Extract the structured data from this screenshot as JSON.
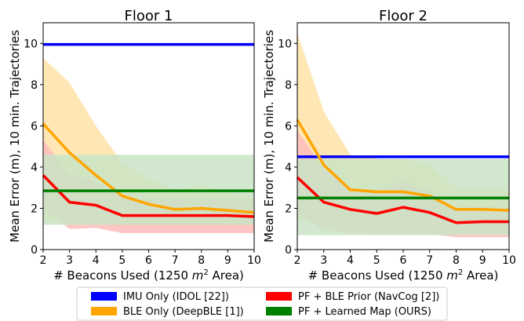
{
  "chart_data": [
    {
      "type": "line",
      "title": "Floor 1",
      "xlabel": "# Beacons Used (1250 m² Area)",
      "xlabel_parts": [
        "# Beacons Used (1250 ",
        "m",
        "2",
        " Area)"
      ],
      "ylabel": "Mean Error (m), 10 min. Trajectories",
      "xlim": [
        2,
        10
      ],
      "ylim": [
        0,
        11
      ],
      "xticks": [
        "2",
        "3",
        "4",
        "5",
        "6",
        "7",
        "8",
        "9",
        "10"
      ],
      "yticks": [
        "0",
        "2",
        "4",
        "6",
        "8",
        "10"
      ],
      "x": [
        2,
        3,
        4,
        5,
        6,
        7,
        8,
        9,
        10
      ],
      "series": [
        {
          "name": "IMU Only (IDOL [22])",
          "color": "#0000ff",
          "values": [
            9.95,
            9.95,
            9.95,
            9.95,
            9.95,
            9.95,
            9.95,
            9.95,
            9.95
          ]
        },
        {
          "name": "BLE Only (DeepBLE [1])",
          "color": "#ffa500",
          "band_color": "#ffe3a8",
          "values": [
            6.1,
            4.7,
            3.6,
            2.6,
            2.2,
            1.95,
            2.0,
            1.9,
            1.8
          ],
          "lower": [
            1.4,
            1.3,
            1.3,
            1.1,
            1.1,
            1.1,
            1.1,
            1.1,
            1.1
          ],
          "upper": [
            9.3,
            8.1,
            6.0,
            4.2,
            3.4,
            2.9,
            3.1,
            2.8,
            2.5
          ]
        },
        {
          "name": "PF + BLE Prior (NavCog [2])",
          "color": "#ff0000",
          "band_color": "#ffbcbc",
          "values": [
            3.6,
            2.3,
            2.15,
            1.65,
            1.65,
            1.65,
            1.65,
            1.65,
            1.6
          ],
          "lower": [
            2.0,
            1.0,
            1.05,
            0.8,
            0.8,
            0.8,
            0.8,
            0.8,
            0.8
          ],
          "upper": [
            5.3,
            3.7,
            3.3,
            2.5,
            2.5,
            2.45,
            2.45,
            2.45,
            2.4
          ]
        },
        {
          "name": "PF + Learned Map (OURS)",
          "color": "#008000",
          "band_color": "#c9e4c5",
          "values": [
            2.85,
            2.85,
            2.85,
            2.85,
            2.85,
            2.85,
            2.85,
            2.85,
            2.85
          ],
          "lower": [
            1.2,
            1.2,
            1.2,
            1.2,
            1.2,
            1.2,
            1.2,
            1.2,
            1.2
          ],
          "upper": [
            4.6,
            4.6,
            4.6,
            4.6,
            4.6,
            4.6,
            4.6,
            4.6,
            4.6
          ]
        }
      ]
    },
    {
      "type": "line",
      "title": "Floor 2",
      "xlabel": "# Beacons Used (1250 m² Area)",
      "xlabel_parts": [
        "# Beacons Used (1250 ",
        "m",
        "2",
        " Area)"
      ],
      "ylabel": "Mean Error (m), 10 min. Trajectories",
      "xlim": [
        2,
        10
      ],
      "ylim": [
        0,
        11
      ],
      "xticks": [
        "2",
        "3",
        "4",
        "5",
        "6",
        "7",
        "8",
        "9",
        "10"
      ],
      "yticks": [
        "0",
        "2",
        "4",
        "6",
        "8",
        "10"
      ],
      "x": [
        2,
        3,
        4,
        5,
        6,
        7,
        8,
        9,
        10
      ],
      "series": [
        {
          "name": "IMU Only (IDOL [22])",
          "color": "#0000ff",
          "values": [
            4.5,
            4.5,
            4.5,
            4.5,
            4.5,
            4.5,
            4.5,
            4.5,
            4.5
          ]
        },
        {
          "name": "BLE Only (DeepBLE [1])",
          "color": "#ffa500",
          "band_color": "#ffe3a8",
          "values": [
            6.3,
            4.1,
            2.9,
            2.8,
            2.8,
            2.6,
            1.95,
            1.95,
            1.9
          ],
          "lower": [
            1.5,
            1.2,
            1.1,
            1.1,
            1.0,
            1.0,
            0.9,
            0.9,
            0.9
          ],
          "upper": [
            10.5,
            6.7,
            4.6,
            4.4,
            4.4,
            4.1,
            3.0,
            3.0,
            2.9
          ]
        },
        {
          "name": "PF + BLE Prior (NavCog [2])",
          "color": "#ff0000",
          "band_color": "#ffbcbc",
          "values": [
            3.5,
            2.3,
            1.95,
            1.75,
            2.05,
            1.8,
            1.3,
            1.35,
            1.35
          ],
          "lower": [
            1.8,
            0.95,
            0.8,
            0.75,
            0.75,
            0.75,
            0.6,
            0.6,
            0.6
          ],
          "upper": [
            5.8,
            3.9,
            3.0,
            2.9,
            3.3,
            2.85,
            2.0,
            2.1,
            2.05
          ]
        },
        {
          "name": "PF + Learned Map (OURS)",
          "color": "#008000",
          "band_color": "#c9e4c5",
          "values": [
            2.5,
            2.5,
            2.5,
            2.5,
            2.5,
            2.5,
            2.5,
            2.5,
            2.5
          ],
          "lower": [
            0.7,
            0.7,
            0.7,
            0.7,
            0.7,
            0.7,
            0.7,
            0.7,
            0.7
          ],
          "upper": [
            4.4,
            4.4,
            4.4,
            4.4,
            4.4,
            4.4,
            4.4,
            4.4,
            4.4
          ]
        }
      ]
    }
  ],
  "legend": {
    "placement": "bottom",
    "items": [
      {
        "label": "IMU Only (IDOL [22])",
        "color": "#0000ff"
      },
      {
        "label": "PF + BLE Prior (NavCog [2])",
        "color": "#ff0000"
      },
      {
        "label": "BLE Only (DeepBLE [1])",
        "color": "#ffa500"
      },
      {
        "label": "PF + Learned Map (OURS)",
        "color": "#008000"
      }
    ]
  }
}
